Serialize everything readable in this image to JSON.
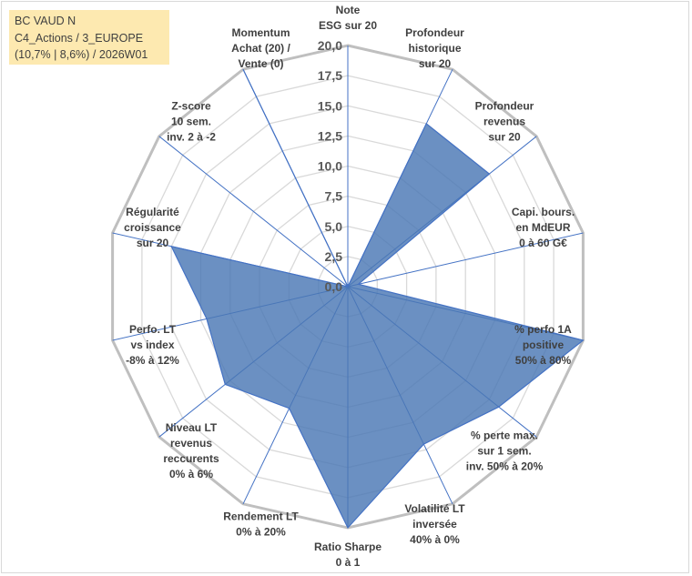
{
  "title": {
    "line1": "BC VAUD N",
    "line2": "C4_Actions / 3_EUROPE",
    "line3": "(10,7% | 8,6%) / 2026W01"
  },
  "chart_data": {
    "type": "radar",
    "rmin": 0,
    "rmax": 20,
    "tick_step": 2.5,
    "tick_labels": [
      "0,0",
      "2,5",
      "5,0",
      "7,5",
      "10,0",
      "12,5",
      "15,0",
      "17,5",
      "20,0"
    ],
    "fill_color": "#4a78b5",
    "line_color": "#4472c4",
    "grid_color": "#d9d9d9",
    "axes": [
      {
        "lines": [
          "Note",
          "ESG sur 20"
        ],
        "value": 0
      },
      {
        "lines": [
          "Profondeur",
          "historique",
          "sur 20"
        ],
        "value": 15
      },
      {
        "lines": [
          "Profondeur",
          "revenus",
          "sur 20"
        ],
        "value": 15
      },
      {
        "lines": [
          "Capi. bours.",
          "en MdEUR",
          "0 à 60 G€"
        ],
        "value": 0.9
      },
      {
        "lines": [
          "% perfo 1A",
          "positive",
          "50% à 80%"
        ],
        "value": 20
      },
      {
        "lines": [
          "% perte max.",
          "sur 1 sem.",
          "inv. 50% à 20%"
        ],
        "value": 16
      },
      {
        "lines": [
          "Volatilité LT",
          "inversée",
          "40% à 0%"
        ],
        "value": 14.5
      },
      {
        "lines": [
          "Ratio Sharpe",
          "0 à 1"
        ],
        "value": 20
      },
      {
        "lines": [
          "Rendement LT",
          "0% à 20%"
        ],
        "value": 11.2
      },
      {
        "lines": [
          "Niveau LT",
          "revenus",
          "reccurents",
          "0% à 6%"
        ],
        "value": 13
      },
      {
        "lines": [
          "Perfo. LT",
          "vs index",
          "-8% à 12%"
        ],
        "value": 12
      },
      {
        "lines": [
          "Régularité",
          "croissance",
          "sur 20"
        ],
        "value": 15
      },
      {
        "lines": [
          "Z-score",
          "10 sem.",
          "inv. 2 à -2"
        ],
        "value": 0
      },
      {
        "lines": [
          "Momentum",
          "Achat (20) /",
          "Vente (0)"
        ],
        "value": 20
      }
    ]
  }
}
